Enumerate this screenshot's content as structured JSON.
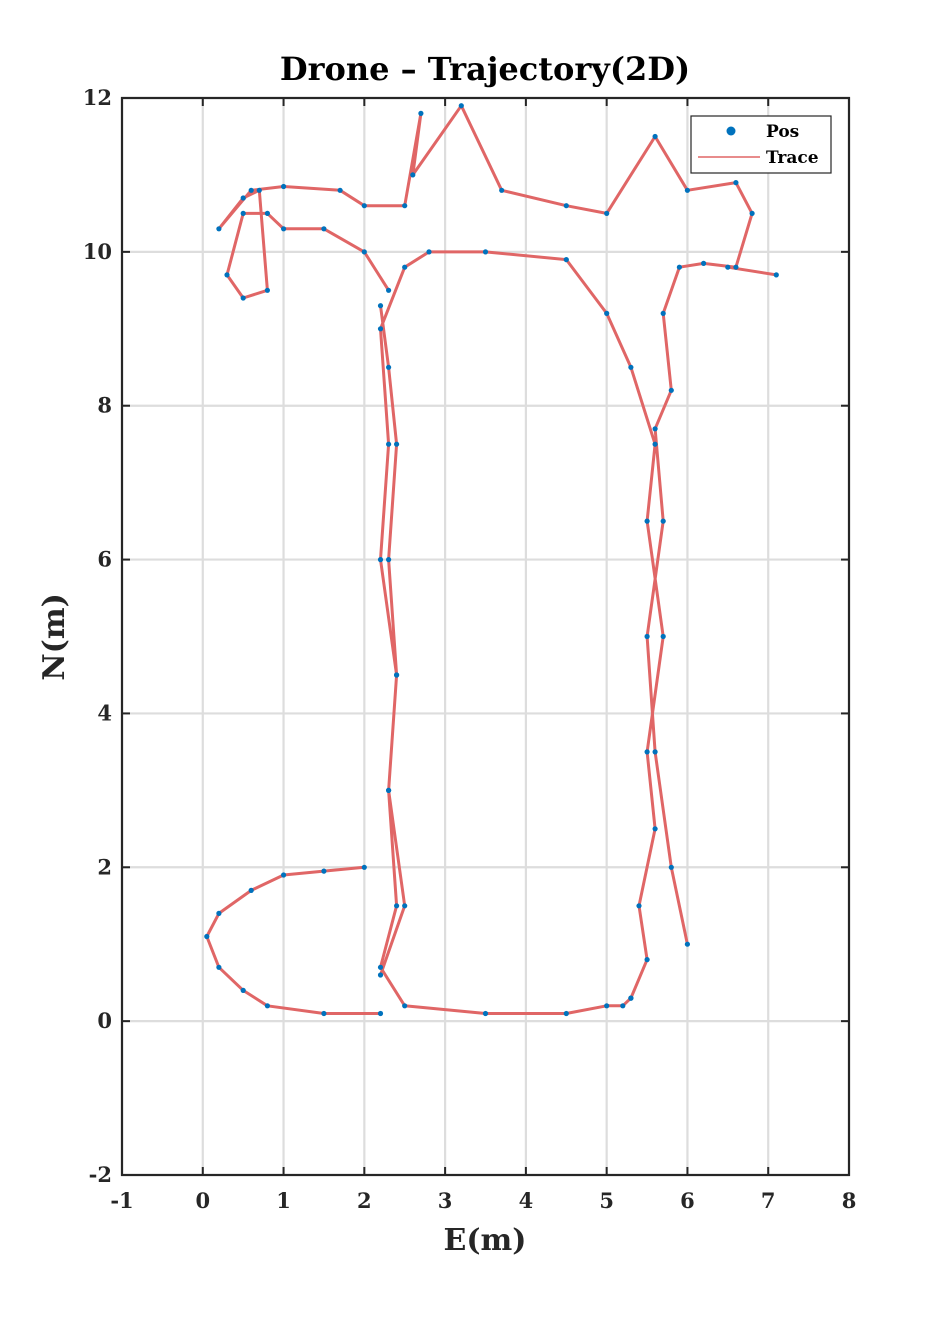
{
  "chart_data": {
    "type": "scatter",
    "title": "Drone – Trajectory(2D)",
    "xlabel": "E(m)",
    "ylabel": "N(m)",
    "xlim": [
      -1,
      8
    ],
    "ylim": [
      -2,
      12
    ],
    "xticks": [
      -1,
      0,
      1,
      2,
      3,
      4,
      5,
      6,
      7,
      8
    ],
    "yticks": [
      -2,
      0,
      2,
      4,
      6,
      8,
      10,
      12
    ],
    "xtick_labels": [
      "-1",
      "0",
      "1",
      "2",
      "3",
      "4",
      "5",
      "6",
      "7",
      "8"
    ],
    "ytick_labels": [
      "-2",
      "0",
      "2",
      "4",
      "6",
      "8",
      "10",
      "12"
    ],
    "grid": true,
    "legend_position": "top-right",
    "colors": {
      "pos": "#0072BD",
      "trace": "#E06666",
      "axis": "#262626",
      "grid": "#DDDDDD"
    },
    "series": [
      {
        "name": "Pos",
        "marker": "dot",
        "x": [
          2.2,
          2.5,
          2.3,
          2.4,
          2.2,
          2.3,
          2.2,
          2.5,
          2.8,
          3.5,
          4.5,
          5.0,
          5.3,
          5.6,
          5.5,
          5.7,
          5.5,
          5.6,
          5.4,
          5.5,
          5.3,
          5.3,
          5.2,
          5.0,
          4.5,
          3.5,
          2.5,
          2.2,
          2.4,
          2.3,
          2.4,
          2.3,
          2.4,
          2.3,
          2.2,
          2.0,
          1.5,
          1.0,
          0.6,
          0.2,
          0.05,
          0.2,
          0.5,
          0.8,
          1.5,
          2.2,
          2.3,
          2.0,
          1.5,
          1.0,
          0.8,
          0.5,
          0.3,
          0.5,
          0.8,
          0.7,
          0.5,
          0.2,
          0.6,
          1.0,
          1.7,
          2.0,
          2.5,
          2.7,
          2.6,
          3.2,
          3.7,
          4.5,
          5.0,
          5.6,
          6.0,
          6.6,
          6.8,
          6.6,
          6.2,
          5.9,
          5.7,
          5.8,
          5.6,
          5.7,
          5.5,
          5.6,
          5.8,
          6.0,
          6.5,
          7.1
        ],
        "y": [
          0.6,
          1.5,
          3.0,
          4.5,
          6.0,
          7.5,
          9.0,
          9.8,
          10.0,
          10.0,
          9.9,
          9.2,
          8.5,
          7.5,
          6.5,
          5.0,
          3.5,
          2.5,
          1.5,
          0.8,
          0.3,
          0.3,
          0.2,
          0.2,
          0.1,
          0.1,
          0.2,
          0.7,
          1.5,
          3.0,
          4.5,
          6.0,
          7.5,
          8.5,
          9.3,
          2.0,
          1.95,
          1.9,
          1.7,
          1.4,
          1.1,
          0.7,
          0.4,
          0.2,
          0.1,
          0.1,
          9.5,
          10.0,
          10.3,
          10.3,
          10.5,
          10.5,
          9.7,
          9.4,
          9.5,
          10.8,
          10.7,
          10.3,
          10.8,
          10.85,
          10.8,
          10.6,
          10.6,
          11.8,
          11.0,
          11.9,
          10.8,
          10.6,
          10.5,
          11.5,
          10.8,
          10.9,
          10.5,
          9.8,
          9.85,
          9.8,
          9.2,
          8.2,
          7.7,
          6.5,
          5.0,
          3.5,
          2.0,
          1.0,
          9.8,
          9.7
        ]
      },
      {
        "name": "Trace",
        "marker": "line",
        "x": [
          2.2,
          2.5,
          2.3,
          2.4,
          2.2,
          2.3,
          2.2,
          2.5,
          2.8,
          3.5,
          4.5,
          5.0,
          5.3,
          5.6,
          5.5,
          5.7,
          5.5,
          5.6,
          5.4,
          5.5,
          5.3,
          5.3,
          5.2,
          5.0,
          4.5,
          3.5,
          2.5,
          2.2,
          2.4,
          2.3,
          2.4,
          2.3,
          2.4,
          2.3,
          2.2,
          2.0,
          1.5,
          1.0,
          0.6,
          0.2,
          0.05,
          0.2,
          0.5,
          0.8,
          1.5,
          2.2,
          2.3,
          2.0,
          1.5,
          1.0,
          0.8,
          0.5,
          0.3,
          0.5,
          0.8,
          0.7,
          0.5,
          0.2,
          0.6,
          1.0,
          1.7,
          2.0,
          2.5,
          2.7,
          2.6,
          3.2,
          3.7,
          4.5,
          5.0,
          5.6,
          6.0,
          6.6,
          6.8,
          6.6,
          6.2,
          5.9,
          5.7,
          5.8,
          5.6,
          5.7,
          5.5,
          5.6,
          5.8,
          6.0,
          6.5,
          7.1
        ],
        "y": [
          0.6,
          1.5,
          3.0,
          4.5,
          6.0,
          7.5,
          9.0,
          9.8,
          10.0,
          10.0,
          9.9,
          9.2,
          8.5,
          7.5,
          6.5,
          5.0,
          3.5,
          2.5,
          1.5,
          0.8,
          0.3,
          0.3,
          0.2,
          0.2,
          0.1,
          0.1,
          0.2,
          0.7,
          1.5,
          3.0,
          4.5,
          6.0,
          7.5,
          8.5,
          9.3,
          2.0,
          1.95,
          1.9,
          1.7,
          1.4,
          1.1,
          0.7,
          0.4,
          0.2,
          0.1,
          0.1,
          9.5,
          10.0,
          10.3,
          10.3,
          10.5,
          10.5,
          9.7,
          9.4,
          9.5,
          10.8,
          10.7,
          10.3,
          10.8,
          10.85,
          10.8,
          10.6,
          10.6,
          11.8,
          11.0,
          11.9,
          10.8,
          10.6,
          10.5,
          11.5,
          10.8,
          10.9,
          10.5,
          9.8,
          9.85,
          9.8,
          9.2,
          8.2,
          7.7,
          6.5,
          5.0,
          3.5,
          2.0,
          1.0,
          9.8,
          9.7
        ]
      }
    ]
  }
}
